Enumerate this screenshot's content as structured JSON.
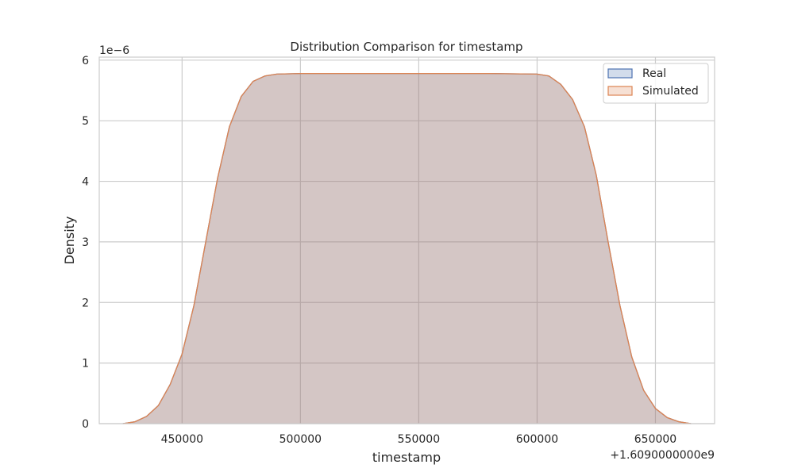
{
  "chart_data": {
    "type": "area",
    "title": "Distribution Comparison for timestamp",
    "xlabel": "timestamp",
    "ylabel": "Density",
    "x_offset_label": "+1.6090000000e9",
    "y_scale_label": "1e−6",
    "x_offset": 1609000000,
    "y_scale": 1e-06,
    "xlim": [
      415000,
      675000
    ],
    "ylim": [
      0,
      6.05
    ],
    "x_ticks": [
      450000,
      500000,
      550000,
      600000,
      650000
    ],
    "x_tick_labels": [
      "450000",
      "500000",
      "550000",
      "600000",
      "650000"
    ],
    "y_ticks": [
      0,
      1,
      2,
      3,
      4,
      5,
      6
    ],
    "y_tick_labels": [
      "0",
      "1",
      "2",
      "3",
      "4",
      "5",
      "6"
    ],
    "grid": true,
    "legend_position": "top-right",
    "series": [
      {
        "name": "Real",
        "edge_color": "#4c72b0",
        "fill_color": "#4c72b0",
        "x": [
          425000,
          430000,
          435000,
          440000,
          445000,
          450000,
          455000,
          460000,
          465000,
          470000,
          475000,
          480000,
          485000,
          490000,
          500000,
          520000,
          550000,
          580000,
          600000,
          605000,
          610000,
          615000,
          620000,
          625000,
          630000,
          635000,
          640000,
          645000,
          650000,
          655000,
          660000,
          665000
        ],
        "y": [
          0.0,
          0.03,
          0.12,
          0.3,
          0.65,
          1.15,
          1.95,
          3.0,
          4.05,
          4.9,
          5.4,
          5.65,
          5.74,
          5.77,
          5.78,
          5.78,
          5.78,
          5.78,
          5.77,
          5.74,
          5.6,
          5.35,
          4.9,
          4.1,
          3.0,
          1.95,
          1.1,
          0.55,
          0.25,
          0.1,
          0.03,
          0.0
        ]
      },
      {
        "name": "Simulated",
        "edge_color": "#dd8452",
        "fill_color": "#dd8452",
        "x": [
          425000,
          430000,
          435000,
          440000,
          445000,
          450000,
          455000,
          460000,
          465000,
          470000,
          475000,
          480000,
          485000,
          490000,
          500000,
          520000,
          550000,
          580000,
          600000,
          605000,
          610000,
          615000,
          620000,
          625000,
          630000,
          635000,
          640000,
          645000,
          650000,
          655000,
          660000,
          665000
        ],
        "y": [
          0.0,
          0.03,
          0.12,
          0.3,
          0.65,
          1.15,
          1.95,
          3.0,
          4.05,
          4.9,
          5.4,
          5.65,
          5.74,
          5.77,
          5.78,
          5.78,
          5.78,
          5.78,
          5.77,
          5.74,
          5.6,
          5.35,
          4.9,
          4.1,
          3.0,
          1.95,
          1.1,
          0.55,
          0.25,
          0.1,
          0.03,
          0.0
        ]
      }
    ]
  }
}
